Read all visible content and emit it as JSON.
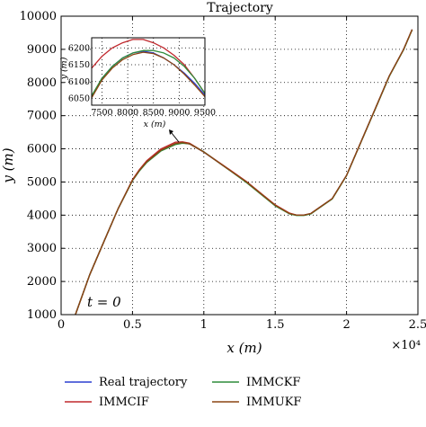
{
  "chart_data": {
    "type": "line",
    "title": "Trajectory",
    "xlabel": "x (m)",
    "ylabel": "y (m)",
    "x_exponent": "×10⁴",
    "xlim": [
      0,
      2.5
    ],
    "ylim": [
      1000,
      10000
    ],
    "xticks": [
      0,
      0.5,
      1,
      1.5,
      2,
      2.5
    ],
    "xtick_labels": [
      "0",
      "0.5",
      "1",
      "1.5",
      "2",
      "2.5"
    ],
    "yticks": [
      1000,
      2000,
      3000,
      4000,
      5000,
      6000,
      7000,
      8000,
      9000,
      10000
    ],
    "ytick_labels": [
      "1000",
      "2000",
      "3000",
      "4000",
      "5000",
      "6000",
      "7000",
      "8000",
      "9000",
      "10000"
    ],
    "grid": true,
    "annotation": "t = 0",
    "series": [
      {
        "name": "Real trajectory",
        "color": "#2b3fd1",
        "x": [
          0.1,
          0.2,
          0.3,
          0.4,
          0.5,
          0.55,
          0.6,
          0.7,
          0.8,
          0.85,
          0.9,
          1.0,
          1.1,
          1.2,
          1.3,
          1.4,
          1.5,
          1.6,
          1.65,
          1.7,
          1.75,
          1.8,
          1.9,
          2.0,
          2.1,
          2.2,
          2.3,
          2.4,
          2.46
        ],
        "y": [
          1000,
          2200,
          3200,
          4200,
          5050,
          5350,
          5600,
          5950,
          6150,
          6180,
          6150,
          5900,
          5600,
          5300,
          5000,
          4650,
          4300,
          4050,
          4000,
          4000,
          4050,
          4200,
          4500,
          5200,
          6200,
          7200,
          8200,
          9000,
          9600
        ]
      },
      {
        "name": "IMMCIF",
        "color": "#c0282d",
        "x": [
          0.1,
          0.2,
          0.3,
          0.4,
          0.5,
          0.55,
          0.6,
          0.7,
          0.8,
          0.85,
          0.9,
          1.0,
          1.1,
          1.2,
          1.3,
          1.4,
          1.5,
          1.6,
          1.65,
          1.7,
          1.75,
          1.8,
          1.9,
          2.0,
          2.1,
          2.2,
          2.3,
          2.4,
          2.46
        ],
        "y": [
          1000,
          2200,
          3200,
          4200,
          5070,
          5380,
          5640,
          6000,
          6200,
          6210,
          6170,
          5910,
          5610,
          5310,
          5010,
          4660,
          4310,
          4060,
          4000,
          4000,
          4050,
          4200,
          4500,
          5200,
          6200,
          7200,
          8200,
          9000,
          9600
        ]
      },
      {
        "name": "IMMCKF",
        "color": "#2e8b3a",
        "x": [
          0.1,
          0.2,
          0.3,
          0.4,
          0.5,
          0.55,
          0.6,
          0.7,
          0.8,
          0.85,
          0.9,
          1.0,
          1.1,
          1.2,
          1.3,
          1.4,
          1.5,
          1.6,
          1.65,
          1.7,
          1.75,
          1.8,
          1.9,
          2.0,
          2.1,
          2.2,
          2.3,
          2.4,
          2.46
        ],
        "y": [
          1000,
          2200,
          3200,
          4200,
          5040,
          5340,
          5590,
          5940,
          6130,
          6170,
          6150,
          5910,
          5600,
          5290,
          4980,
          4630,
          4280,
          4040,
          3990,
          3990,
          4040,
          4190,
          4490,
          5190,
          6190,
          7190,
          8190,
          8990,
          9590
        ]
      },
      {
        "name": "IMMUKF",
        "color": "#8b4513",
        "x": [
          0.1,
          0.2,
          0.3,
          0.4,
          0.5,
          0.55,
          0.6,
          0.7,
          0.8,
          0.85,
          0.9,
          1.0,
          1.1,
          1.2,
          1.3,
          1.4,
          1.5,
          1.6,
          1.65,
          1.7,
          1.75,
          1.8,
          1.9,
          2.0,
          2.1,
          2.2,
          2.3,
          2.4,
          2.46
        ],
        "y": [
          1000,
          2200,
          3200,
          4200,
          5050,
          5360,
          5610,
          5960,
          6160,
          6190,
          6150,
          5900,
          5600,
          5300,
          5000,
          4650,
          4300,
          4050,
          4000,
          4000,
          4050,
          4200,
          4500,
          5200,
          6200,
          7200,
          8200,
          9000,
          9600
        ]
      }
    ],
    "inset": {
      "xlabel": "x (m)",
      "ylabel": "y (m)",
      "xlim": [
        7300,
        9500
      ],
      "ylim": [
        6030,
        6230
      ],
      "xticks": [
        7500,
        8000,
        8500,
        9000,
        9500
      ],
      "xtick_labels": [
        "7500",
        "8000",
        "8500",
        "9000",
        "9500"
      ],
      "yticks": [
        6050,
        6100,
        6150,
        6200
      ],
      "ytick_labels": [
        "6050",
        "6100",
        "6150",
        "6200"
      ],
      "series": [
        {
          "name": "Real trajectory",
          "color": "#2b3fd1",
          "x": [
            7300,
            7500,
            7700,
            7900,
            8100,
            8300,
            8500,
            8700,
            8900,
            9100,
            9300,
            9500
          ],
          "y": [
            6055,
            6110,
            6145,
            6170,
            6185,
            6190,
            6185,
            6170,
            6150,
            6125,
            6095,
            6060
          ]
        },
        {
          "name": "IMMCIF",
          "color": "#c0282d",
          "x": [
            7300,
            7500,
            7700,
            7900,
            8100,
            8300,
            8500,
            8700,
            8900,
            9100,
            9300,
            9500
          ],
          "y": [
            6140,
            6175,
            6200,
            6215,
            6225,
            6225,
            6215,
            6200,
            6178,
            6150,
            6110,
            6065
          ]
        },
        {
          "name": "IMMCKF",
          "color": "#2e8b3a",
          "x": [
            7300,
            7500,
            7700,
            7900,
            8100,
            8300,
            8500,
            8700,
            8900,
            9100,
            9300,
            9500
          ],
          "y": [
            6058,
            6110,
            6145,
            6170,
            6185,
            6192,
            6192,
            6185,
            6170,
            6145,
            6110,
            6065
          ]
        },
        {
          "name": "IMMUKF",
          "color": "#8b4513",
          "x": [
            7300,
            7500,
            7700,
            7900,
            8100,
            8300,
            8500,
            8700,
            8900,
            9100,
            9300,
            9500
          ],
          "y": [
            6052,
            6105,
            6140,
            6165,
            6180,
            6187,
            6183,
            6170,
            6150,
            6122,
            6090,
            6055
          ]
        }
      ]
    },
    "legend": [
      {
        "label": "Real trajectory",
        "color": "#2b3fd1"
      },
      {
        "label": "IMMCKF",
        "color": "#2e8b3a"
      },
      {
        "label": "IMMCIF",
        "color": "#c0282d"
      },
      {
        "label": "IMMUKF",
        "color": "#8b4513"
      }
    ]
  }
}
